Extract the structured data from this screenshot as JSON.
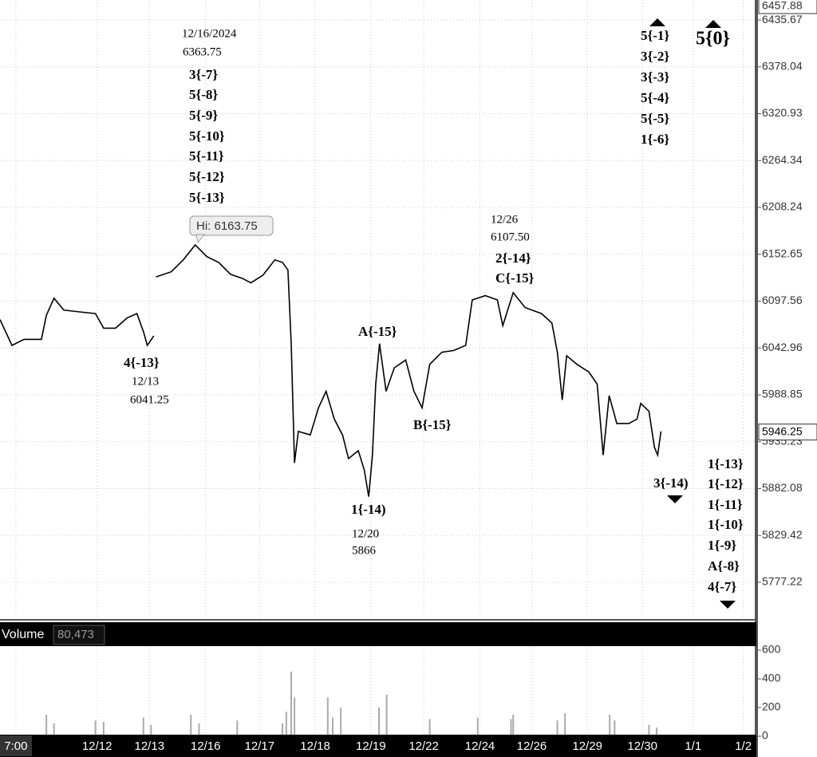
{
  "chart_data": [
    {
      "type": "line",
      "color": "#000000",
      "log_scale": true,
      "grid": true,
      "xlim": [
        -0.78,
        13.06
      ],
      "xticks": [
        {
          "value": -0.49,
          "label": "7:00"
        },
        {
          "value": 1.0,
          "label": "12/12"
        },
        {
          "value": 1.96,
          "label": "12/13"
        },
        {
          "value": 2.99,
          "label": "12/16"
        },
        {
          "value": 3.98,
          "label": "12/17"
        },
        {
          "value": 5.0,
          "label": "12/18"
        },
        {
          "value": 6.02,
          "label": "12/19"
        },
        {
          "value": 6.99,
          "label": "12/22"
        },
        {
          "value": 8.02,
          "label": "12/24"
        },
        {
          "value": 8.97,
          "label": "12/26"
        },
        {
          "value": 9.99,
          "label": "12/29"
        },
        {
          "value": 11.0,
          "label": "12/30"
        },
        {
          "value": 11.93,
          "label": "1/1"
        },
        {
          "value": 12.85,
          "label": "1/2"
        }
      ],
      "ylim": [
        5737.5,
        6460.4
      ],
      "yticks": [
        6435.67,
        6378.04,
        6320.93,
        6264.34,
        6208.24,
        6152.65,
        6097.56,
        6042.96,
        5988.85,
        5935.23,
        5882.08,
        5829.42,
        5777.22
      ],
      "top_price_label": 6457.88,
      "last_price_label": 5946.25,
      "tooltip": "Hi: 6163.75",
      "x": [
        -0.78,
        -0.56,
        -0.34,
        -0.02,
        0.07,
        0.21,
        0.39,
        0.68,
        0.97,
        1.12,
        1.34,
        1.55,
        1.73,
        1.85,
        1.92,
        2.04,
        2.06,
        2.08,
        2.36,
        2.58,
        2.8,
        3.01,
        3.23,
        3.45,
        3.67,
        3.82,
        4.04,
        4.26,
        4.4,
        4.5,
        4.56,
        4.62,
        4.69,
        4.91,
        5.06,
        5.2,
        5.35,
        5.5,
        5.61,
        5.79,
        5.9,
        5.98,
        6.05,
        6.11,
        6.18,
        6.3,
        6.45,
        6.66,
        6.81,
        6.96,
        7.1,
        7.32,
        7.54,
        7.76,
        7.88,
        8.12,
        8.34,
        8.44,
        8.63,
        8.85,
        9.15,
        9.34,
        9.44,
        9.53,
        9.61,
        9.8,
        10.02,
        10.17,
        10.28,
        10.39,
        10.53,
        10.75,
        10.9,
        10.97,
        11.12,
        11.22,
        11.28,
        11.34
      ],
      "values": [
        6076,
        6046,
        6053,
        6053,
        6081,
        6101,
        6087,
        6085,
        6083,
        6066,
        6066,
        6078,
        6083,
        6062,
        6046,
        6057,
        null,
        6126,
        6132,
        6146,
        6163.75,
        6150,
        6143,
        6129,
        6124,
        6119,
        6128,
        6146,
        6143,
        6134,
        6048,
        5911,
        5947,
        5943,
        5974,
        5993,
        5961,
        5943,
        5916,
        5925,
        5903,
        5873,
        5920,
        6001,
        6048,
        5993,
        6020,
        6029,
        5993,
        5974,
        6024,
        6038,
        6040,
        6046,
        6099,
        6104,
        6099,
        6069,
        6107.5,
        6090,
        6083,
        6072,
        6038,
        5983,
        6034,
        6024,
        6015,
        6001,
        5920,
        5988,
        5956,
        5956,
        5961,
        5979,
        5970,
        5929,
        5920,
        5947
      ],
      "annotations": [
        [
          "12/16/2024",
          "6363.75",
          "3{-7}",
          "5{-8}",
          "5{-9}",
          "5{-10}",
          "5{-11}",
          "5{-12}",
          "5{-13}"
        ],
        [
          "4{-13}",
          "12/13",
          "6041.25"
        ],
        [
          "A{-15}"
        ],
        [
          "B{-15}"
        ],
        [
          "1{-14)",
          "12/20",
          "5866"
        ],
        [
          "12/26",
          "6107.50",
          "2{-14}",
          "C{-15}"
        ],
        [
          "5{-1}",
          "3{-2}",
          "3{-3}",
          "5{-4}",
          "5{-5}",
          "1{-6}"
        ],
        [
          "5{0}"
        ],
        [
          "3{-14)"
        ],
        [
          "1{-13}",
          "1{-12}",
          "1{-11}",
          "1{-10}",
          "1{-9}",
          "A{-8}",
          "4{-7}"
        ]
      ]
    },
    {
      "type": "bar",
      "title": "Volume",
      "last_value": "80,473",
      "color": "#aaaaaa",
      "xlim": [
        -0.78,
        13.06
      ],
      "ylim": [
        0,
        628
      ],
      "yticks": [
        0,
        200,
        400,
        600
      ],
      "x": [
        0.07,
        0.21,
        0.97,
        1.12,
        1.85,
        1.99,
        2.72,
        2.87,
        3.57,
        4.4,
        4.47,
        4.56,
        4.62,
        5.23,
        5.32,
        5.47,
        6.17,
        6.31,
        7.1,
        7.98,
        8.59,
        8.63,
        9.44,
        9.58,
        10.4,
        10.49,
        11.12,
        11.26
      ],
      "values": [
        150,
        90,
        110,
        100,
        130,
        80,
        150,
        90,
        110,
        90,
        170,
        450,
        270,
        270,
        130,
        200,
        200,
        290,
        120,
        130,
        120,
        150,
        110,
        160,
        150,
        110,
        80,
        60
      ]
    }
  ]
}
